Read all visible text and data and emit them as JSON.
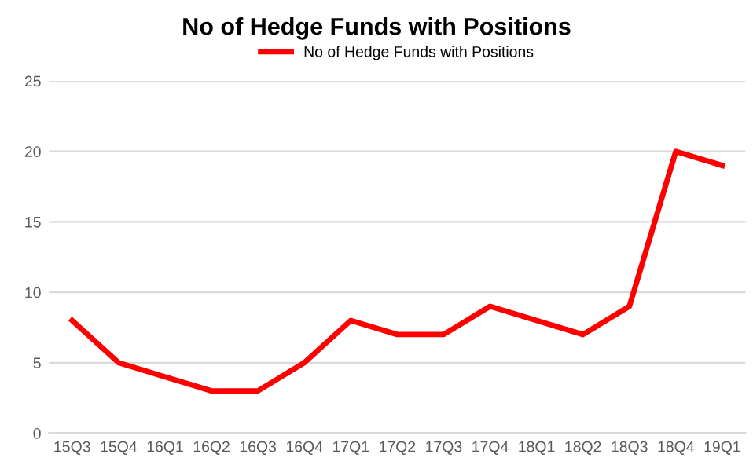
{
  "chart_data": {
    "type": "line",
    "title": "No of Hedge Funds with Positions",
    "categories": [
      "15Q3",
      "15Q4",
      "16Q1",
      "16Q2",
      "16Q3",
      "16Q4",
      "17Q1",
      "17Q2",
      "17Q3",
      "17Q4",
      "18Q1",
      "18Q2",
      "18Q3",
      "18Q4",
      "19Q1"
    ],
    "series": [
      {
        "name": "No of Hedge Funds with Positions",
        "color": "#ff0000",
        "values": [
          8,
          5,
          4,
          3,
          3,
          5,
          8,
          7,
          7,
          9,
          8,
          7,
          9,
          20,
          19
        ]
      }
    ],
    "ylim": [
      0,
      25
    ],
    "yticks": [
      0,
      5,
      10,
      15,
      20,
      25
    ],
    "grid": "y",
    "legend": "top",
    "marker": "none",
    "line_style": "solid"
  }
}
